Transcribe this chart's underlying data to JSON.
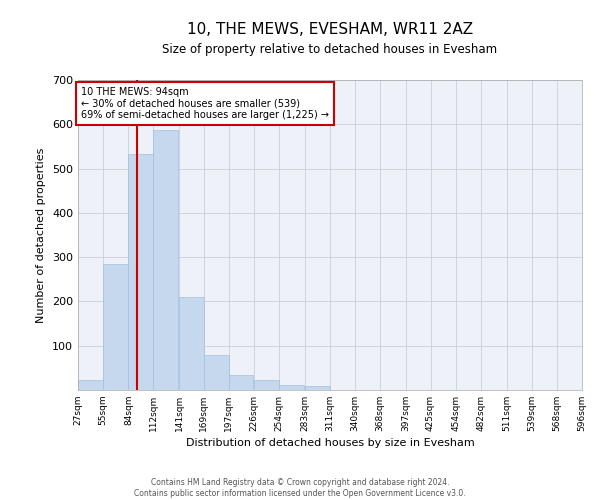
{
  "title": "10, THE MEWS, EVESHAM, WR11 2AZ",
  "subtitle": "Size of property relative to detached houses in Evesham",
  "xlabel": "Distribution of detached houses by size in Evesham",
  "ylabel": "Number of detached properties",
  "bar_color": "#c5d8ed",
  "bar_edge_color": "#a0c0e0",
  "annotation_box_color": "#cc0000",
  "vline_color": "#cc0000",
  "property_size": 94,
  "property_label": "10 THE MEWS: 94sqm",
  "smaller_pct": 30,
  "smaller_count": 539,
  "larger_pct": 69,
  "larger_count": 1225,
  "bin_edges": [
    27,
    55,
    84,
    112,
    141,
    169,
    197,
    226,
    254,
    283,
    311,
    340,
    368,
    397,
    425,
    454,
    482,
    511,
    539,
    568,
    596
  ],
  "bin_counts": [
    22,
    285,
    532,
    587,
    211,
    79,
    34,
    22,
    11,
    9,
    0,
    0,
    0,
    0,
    0,
    0,
    0,
    0,
    0,
    0
  ],
  "ylim": [
    0,
    700
  ],
  "yticks": [
    0,
    100,
    200,
    300,
    400,
    500,
    600,
    700
  ],
  "footer_line1": "Contains HM Land Registry data © Crown copyright and database right 2024.",
  "footer_line2": "Contains public sector information licensed under the Open Government Licence v3.0.",
  "background_color": "#eef2f8",
  "grid_color": "#c8d0de"
}
